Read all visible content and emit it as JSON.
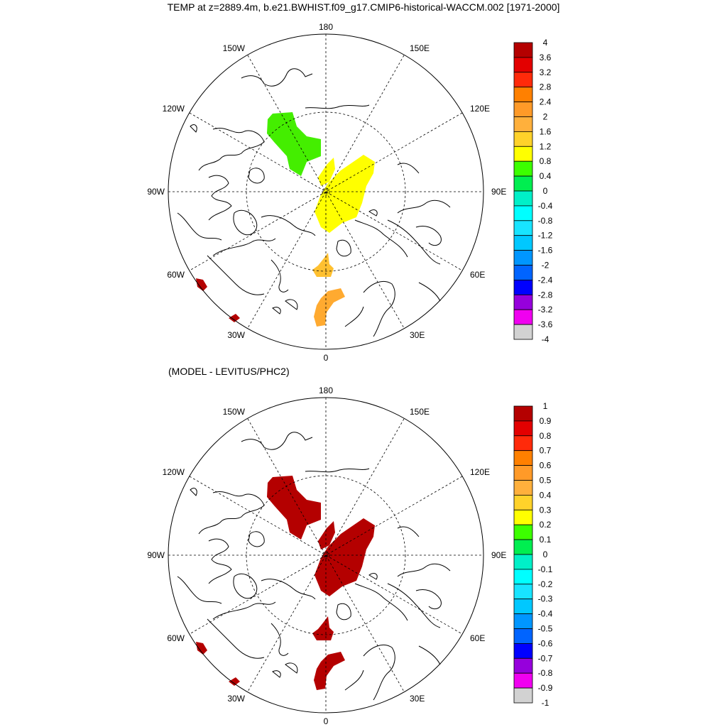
{
  "title": "TEMP at z=2889.4m, b.e21.BWHIST.f09_g17.CMIP6-historical-WACCM.002 [1971-2000]",
  "subtitle": "(MODEL - LEVITUS/PHC2)",
  "lon_labels": {
    "top": "180",
    "bottom": "0",
    "left": "90W",
    "right": "90E",
    "upper_left_far": "150W",
    "upper_left": "120W",
    "upper_right_far": "150E",
    "upper_right": "120E",
    "lower_left": "60W",
    "lower_left_far": "30W",
    "lower_right": "60E",
    "lower_right_far": "30E"
  },
  "colorbar_colors": [
    "#b40000",
    "#e30000",
    "#ff2a0a",
    "#ff8000",
    "#ff9a28",
    "#ffb03c",
    "#ffd22a",
    "#ffff00",
    "#3cff00",
    "#00ee50",
    "#00f0c8",
    "#00ffff",
    "#18e4ff",
    "#00c8ff",
    "#0096ff",
    "#0064ff",
    "#0000ff",
    "#9600dc",
    "#f000f0",
    "#d2d2d2",
    "#787878"
  ],
  "panel_top": {
    "colorbar_labels": [
      "4",
      "3.6",
      "3.2",
      "2.8",
      "2.4",
      "2",
      "1.6",
      "1.2",
      "0.8",
      "0.4",
      "0",
      "-0.4",
      "-0.8",
      "-1.2",
      "-1.6",
      "-2",
      "-2.4",
      "-2.8",
      "-3.2",
      "-3.6",
      "-4"
    ],
    "region_colors": {
      "canada_basin": "#44ee00",
      "eurasian_basin": "#ffff00",
      "fram_strait": "#ffc030",
      "nordic_seas": "#ffaa30",
      "labrador_sea": "#b40000",
      "iceland_south": "#b40000"
    }
  },
  "panel_bottom": {
    "colorbar_labels": [
      "1",
      "0.9",
      "0.8",
      "0.7",
      "0.6",
      "0.5",
      "0.4",
      "0.3",
      "0.2",
      "0.1",
      "0",
      "-0.1",
      "-0.2",
      "-0.3",
      "-0.4",
      "-0.5",
      "-0.6",
      "-0.7",
      "-0.8",
      "-0.9",
      "-1"
    ],
    "region_colors": {
      "canada_basin": "#b40000",
      "eurasian_basin": "#b40000",
      "fram_strait": "#b40000",
      "nordic_seas": "#b40000",
      "labrador_sea": "#b40000",
      "iceland_south": "#b40000"
    }
  }
}
